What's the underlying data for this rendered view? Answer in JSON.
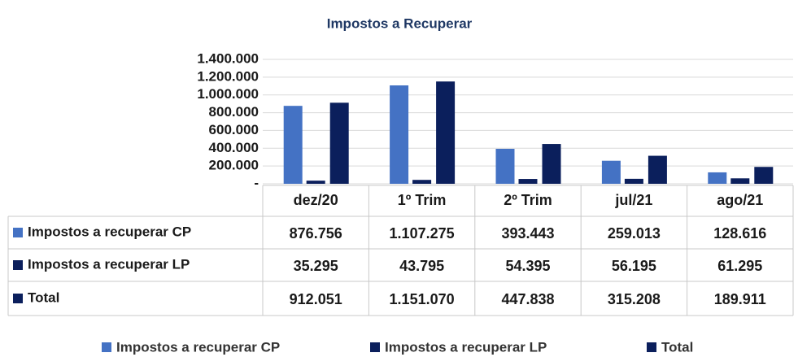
{
  "chart_data": {
    "type": "bar",
    "title": "Impostos a Recuperar",
    "categories": [
      "dez/20",
      "1º Trim",
      "2º Trim",
      "jul/21",
      "ago/21"
    ],
    "series": [
      {
        "name": "Impostos a recuperar CP",
        "color": "#4472c4",
        "values": [
          876756,
          1107275,
          393443,
          259013,
          128616
        ],
        "value_labels": [
          "876.756",
          "1.107.275",
          "393.443",
          "259.013",
          "128.616"
        ]
      },
      {
        "name": "Impostos a recuperar LP",
        "color": "#0b1f5c",
        "values": [
          35295,
          43795,
          54395,
          56195,
          61295
        ],
        "value_labels": [
          "35.295",
          "43.795",
          "54.395",
          "56.195",
          "61.295"
        ]
      },
      {
        "name": "Total",
        "color": "#0b1f5c",
        "values": [
          912051,
          1151070,
          447838,
          315208,
          189911
        ],
        "value_labels": [
          "912.051",
          "1.151.070",
          "447.838",
          "315.208",
          "189.911"
        ]
      }
    ],
    "ylim": [
      0,
      1400000
    ],
    "yticks": [
      {
        "value": 0,
        "label": "-"
      },
      {
        "value": 200000,
        "label": "200.000"
      },
      {
        "value": 400000,
        "label": "400.000"
      },
      {
        "value": 600000,
        "label": "600.000"
      },
      {
        "value": 800000,
        "label": "800.000"
      },
      {
        "value": 1000000,
        "label": "1.000.000"
      },
      {
        "value": 1200000,
        "label": "1.200.000"
      },
      {
        "value": 1400000,
        "label": "1.400.000"
      }
    ],
    "grid": true,
    "legend": "bottom"
  }
}
